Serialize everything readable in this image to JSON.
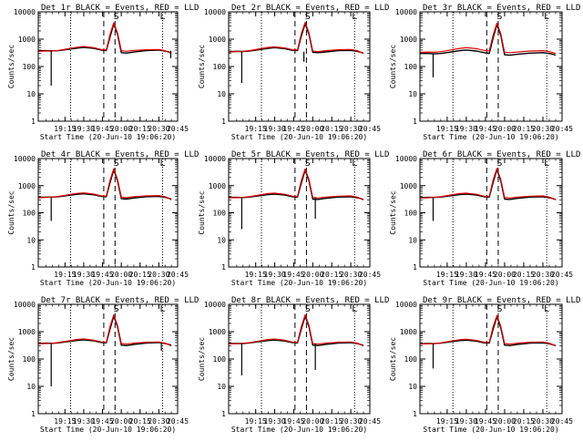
{
  "figure": {
    "xlabel": "Start Time (20-Jun-10 19:06:20)",
    "ylabel": "Counts/sec"
  },
  "axis": {
    "x_ticks": [
      "19:15",
      "19:30",
      "19:45",
      "20:00",
      "20:15",
      "20:30",
      "20:45"
    ],
    "x_tick_minutes": [
      15,
      30,
      45,
      60,
      75,
      90,
      105
    ],
    "y_ticks": [
      "1",
      "10",
      "100",
      "1000",
      "10000"
    ],
    "y_tick_values": [
      1,
      10,
      100,
      1000,
      10000
    ],
    "xlim_minutes": [
      -6.33,
      105
    ],
    "ylim": [
      1,
      10000
    ],
    "y_scale": "log"
  },
  "markers": {
    "dotted_minutes": [
      19.5,
      93
    ],
    "dashed_minutes": [
      46,
      55
    ],
    "labels": [
      {
        "text": "S",
        "minute": 56
      },
      {
        "text": "L",
        "minute": 93
      }
    ]
  },
  "colors": {
    "events": "#000000",
    "lld": "#e00000",
    "axes": "#000000"
  },
  "chart_data": [
    {
      "type": "line",
      "title": "Det 1r BLACK = Events, RED = LLD",
      "xlabel": "Start Time (20-Jun-10 19:06:20)",
      "ylabel": "Counts/sec",
      "ylim": [
        1,
        10000
      ],
      "y_scale": "log",
      "x": [
        -6,
        0,
        5,
        10,
        20,
        25,
        30,
        38,
        44,
        48,
        51,
        54,
        57,
        60,
        64,
        70,
        80,
        90,
        95,
        98,
        100
      ],
      "series": [
        {
          "name": "Events",
          "values": [
            380,
            380,
            375,
            380,
            440,
            470,
            500,
            460,
            400,
            380,
            1200,
            3600,
            1500,
            320,
            310,
            340,
            380,
            400,
            370,
            340,
            320
          ]
        },
        {
          "name": "LLD",
          "values": [
            360,
            370,
            370,
            390,
            470,
            510,
            540,
            490,
            420,
            400,
            1500,
            4000,
            1700,
            380,
            360,
            390,
            410,
            420,
            380,
            330,
            300
          ]
        }
      ],
      "dips": [
        {
          "minute": 4,
          "value": 20
        },
        {
          "minute": 99.5,
          "value": 200
        }
      ]
    },
    {
      "type": "line",
      "title": "Det 2r BLACK = Events, RED = LLD",
      "xlabel": "Start Time (20-Jun-10 19:06:20)",
      "ylabel": "Counts/sec",
      "ylim": [
        1,
        10000
      ],
      "y_scale": "log",
      "x": [
        -6,
        0,
        5,
        10,
        20,
        25,
        30,
        38,
        44,
        48,
        51,
        54,
        57,
        60,
        64,
        70,
        80,
        90,
        95,
        98,
        100
      ],
      "series": [
        {
          "name": "Events",
          "values": [
            350,
            360,
            355,
            370,
            430,
            460,
            490,
            450,
            390,
            380,
            1300,
            3700,
            1500,
            330,
            320,
            340,
            380,
            390,
            360,
            330,
            310
          ]
        },
        {
          "name": "LLD",
          "values": [
            340,
            350,
            355,
            380,
            460,
            500,
            520,
            480,
            410,
            400,
            1600,
            4100,
            1700,
            370,
            350,
            380,
            410,
            420,
            380,
            330,
            300
          ]
        }
      ],
      "dips": [
        {
          "minute": 4,
          "value": 25
        },
        {
          "minute": 53,
          "value": 150
        }
      ]
    },
    {
      "type": "line",
      "title": "Det 3r BLACK = Events, RED = LLD",
      "xlabel": "Start Time (20-Jun-10 19:06:20)",
      "ylabel": "Counts/sec",
      "ylim": [
        1,
        10000
      ],
      "y_scale": "log",
      "x": [
        -6,
        0,
        5,
        10,
        20,
        25,
        30,
        38,
        44,
        48,
        51,
        54,
        57,
        60,
        64,
        70,
        80,
        90,
        95,
        98,
        100
      ],
      "series": [
        {
          "name": "Events",
          "values": [
            300,
            300,
            290,
            300,
            350,
            380,
            400,
            370,
            320,
            300,
            1100,
            3400,
            1400,
            270,
            260,
            280,
            310,
            320,
            300,
            280,
            260
          ]
        },
        {
          "name": "LLD",
          "values": [
            330,
            340,
            330,
            350,
            420,
            460,
            490,
            450,
            390,
            370,
            1400,
            3900,
            1600,
            330,
            320,
            340,
            370,
            380,
            350,
            320,
            300
          ]
        }
      ],
      "dips": [
        {
          "minute": 4,
          "value": 40
        }
      ]
    },
    {
      "type": "line",
      "title": "Det 4r BLACK = Events, RED = LLD",
      "xlabel": "Start Time (20-Jun-10 19:06:20)",
      "ylabel": "Counts/sec",
      "ylim": [
        1,
        10000
      ],
      "y_scale": "log",
      "x": [
        -6,
        0,
        5,
        10,
        20,
        25,
        30,
        38,
        44,
        48,
        51,
        54,
        57,
        60,
        64,
        70,
        80,
        90,
        95,
        98,
        100
      ],
      "series": [
        {
          "name": "Events",
          "values": [
            370,
            380,
            380,
            390,
            450,
            480,
            500,
            460,
            400,
            390,
            1300,
            3800,
            1500,
            330,
            320,
            350,
            390,
            400,
            370,
            340,
            320
          ]
        },
        {
          "name": "LLD",
          "values": [
            360,
            370,
            380,
            400,
            480,
            520,
            540,
            490,
            420,
            410,
            1600,
            4200,
            1700,
            380,
            360,
            390,
            420,
            430,
            390,
            340,
            300
          ]
        }
      ],
      "dips": [
        {
          "minute": 4,
          "value": 50
        }
      ]
    },
    {
      "type": "line",
      "title": "Det 5r BLACK = Events, RED = LLD",
      "xlabel": "Start Time (20-Jun-10 19:06:20)",
      "ylabel": "Counts/sec",
      "ylim": [
        1,
        10000
      ],
      "y_scale": "log",
      "x": [
        -6,
        0,
        5,
        10,
        20,
        25,
        30,
        38,
        44,
        48,
        51,
        54,
        57,
        60,
        64,
        70,
        80,
        90,
        95,
        98,
        100
      ],
      "series": [
        {
          "name": "Events",
          "values": [
            370,
            370,
            365,
            380,
            440,
            470,
            490,
            450,
            390,
            380,
            1250,
            3700,
            1500,
            320,
            310,
            340,
            380,
            390,
            360,
            330,
            310
          ]
        },
        {
          "name": "LLD",
          "values": [
            360,
            360,
            370,
            390,
            470,
            510,
            530,
            480,
            410,
            400,
            1550,
            4100,
            1700,
            370,
            350,
            380,
            410,
            420,
            380,
            330,
            300
          ]
        }
      ],
      "dips": [
        {
          "minute": 4,
          "value": 25
        },
        {
          "minute": 62,
          "value": 60
        }
      ]
    },
    {
      "type": "line",
      "title": "Det 6r BLACK = Events, RED = LLD",
      "xlabel": "Start Time (20-Jun-10 19:06:20)",
      "ylabel": "Counts/sec",
      "ylim": [
        1,
        10000
      ],
      "y_scale": "log",
      "x": [
        -6,
        0,
        5,
        10,
        20,
        25,
        30,
        38,
        44,
        48,
        51,
        54,
        57,
        60,
        64,
        70,
        80,
        90,
        95,
        98,
        100
      ],
      "series": [
        {
          "name": "Events",
          "values": [
            360,
            370,
            370,
            380,
            440,
            470,
            490,
            450,
            390,
            380,
            1300,
            3900,
            1500,
            320,
            310,
            340,
            380,
            390,
            360,
            330,
            310
          ]
        },
        {
          "name": "LLD",
          "values": [
            350,
            360,
            370,
            390,
            470,
            510,
            530,
            480,
            410,
            400,
            1600,
            4300,
            1700,
            370,
            350,
            380,
            410,
            420,
            380,
            330,
            300
          ]
        }
      ],
      "dips": [
        {
          "minute": 4,
          "value": 50
        }
      ]
    },
    {
      "type": "line",
      "title": "Det 7r BLACK = Events, RED = LLD",
      "xlabel": "Start Time (20-Jun-10 19:06:20)",
      "ylabel": "Counts/sec",
      "ylim": [
        1,
        10000
      ],
      "y_scale": "log",
      "x": [
        -6,
        0,
        5,
        10,
        20,
        25,
        30,
        38,
        44,
        48,
        51,
        54,
        57,
        60,
        64,
        70,
        80,
        90,
        95,
        98,
        100
      ],
      "series": [
        {
          "name": "Events",
          "values": [
            370,
            380,
            375,
            390,
            450,
            480,
            500,
            460,
            400,
            390,
            1250,
            3700,
            1500,
            320,
            310,
            340,
            380,
            400,
            370,
            340,
            320
          ]
        },
        {
          "name": "LLD",
          "values": [
            360,
            370,
            375,
            400,
            480,
            520,
            540,
            490,
            420,
            410,
            1550,
            4100,
            1700,
            370,
            350,
            380,
            410,
            420,
            380,
            330,
            300
          ]
        }
      ],
      "dips": [
        {
          "minute": 4,
          "value": 10
        },
        {
          "minute": 92,
          "value": 200
        }
      ]
    },
    {
      "type": "line",
      "title": "Det 8r BLACK = Events, RED = LLD",
      "xlabel": "Start Time (20-Jun-10 19:06:20)",
      "ylabel": "Counts/sec",
      "ylim": [
        1,
        10000
      ],
      "y_scale": "log",
      "x": [
        -6,
        0,
        5,
        10,
        20,
        25,
        30,
        38,
        44,
        48,
        51,
        54,
        57,
        60,
        64,
        70,
        80,
        90,
        95,
        98,
        100
      ],
      "series": [
        {
          "name": "Events",
          "values": [
            370,
            370,
            370,
            385,
            445,
            475,
            495,
            455,
            395,
            385,
            1250,
            3700,
            1500,
            320,
            310,
            340,
            380,
            395,
            365,
            335,
            315
          ]
        },
        {
          "name": "LLD",
          "values": [
            360,
            360,
            375,
            395,
            475,
            515,
            535,
            485,
            415,
            405,
            1550,
            4100,
            1700,
            370,
            350,
            380,
            410,
            420,
            380,
            330,
            300
          ]
        }
      ],
      "dips": [
        {
          "minute": 4,
          "value": 25
        },
        {
          "minute": 62,
          "value": 40
        }
      ]
    },
    {
      "type": "line",
      "title": "Det 9r BLACK = Events, RED = LLD",
      "xlabel": "Start Time (20-Jun-10 19:06:20)",
      "ylabel": "Counts/sec",
      "ylim": [
        1,
        10000
      ],
      "y_scale": "log",
      "x": [
        -6,
        0,
        5,
        10,
        20,
        25,
        30,
        38,
        44,
        48,
        51,
        54,
        57,
        60,
        64,
        70,
        80,
        90,
        95,
        98,
        100
      ],
      "series": [
        {
          "name": "Events",
          "values": [
            360,
            370,
            365,
            380,
            440,
            470,
            490,
            450,
            390,
            380,
            1200,
            3500,
            1400,
            320,
            310,
            340,
            380,
            390,
            360,
            330,
            310
          ]
        },
        {
          "name": "LLD",
          "values": [
            350,
            360,
            365,
            390,
            470,
            510,
            530,
            480,
            410,
            400,
            1500,
            3900,
            1600,
            370,
            350,
            380,
            410,
            420,
            380,
            330,
            300
          ]
        }
      ],
      "dips": [
        {
          "minute": 4,
          "value": 45
        }
      ]
    }
  ]
}
